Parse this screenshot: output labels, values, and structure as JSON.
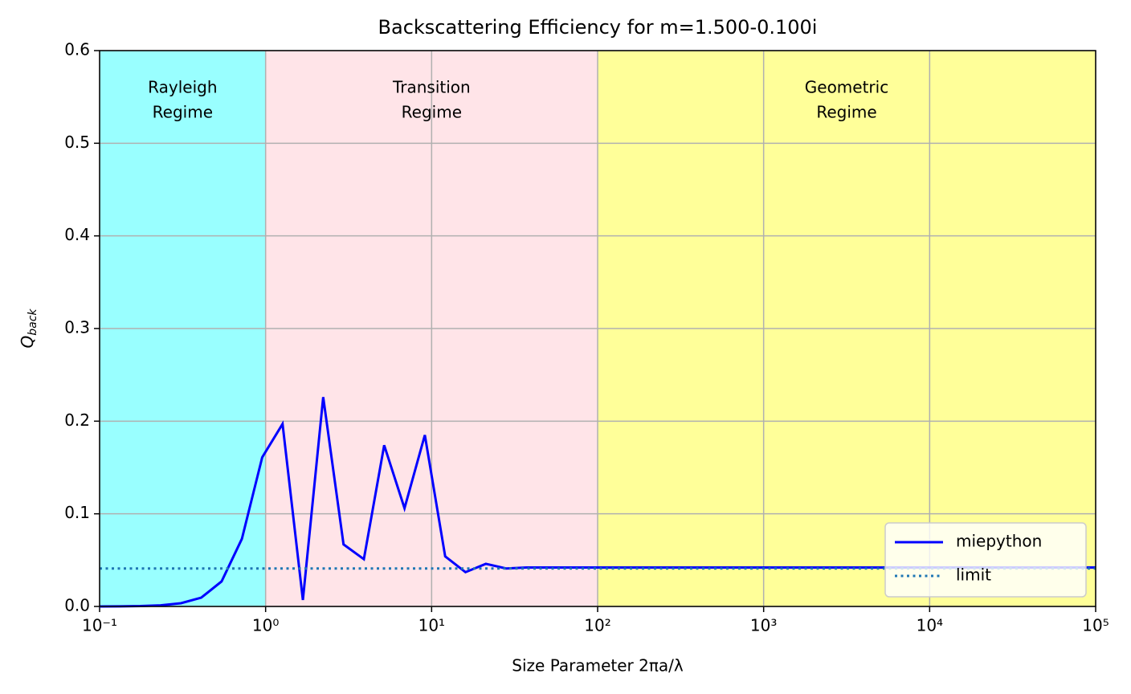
{
  "chart_data": {
    "type": "line",
    "title": "Backscattering Efficiency for m=1.500-0.100i",
    "xlabel": "Size Parameter 2πa/λ",
    "ylabel": [
      "Q",
      "back"
    ],
    "xscale": "log",
    "xlim": [
      0.1,
      100000
    ],
    "ylim": [
      0,
      0.6
    ],
    "xticks": [
      {
        "value": 0.1,
        "label": "10⁻¹"
      },
      {
        "value": 1,
        "label": "10⁰"
      },
      {
        "value": 10,
        "label": "10¹"
      },
      {
        "value": 100,
        "label": "10²"
      },
      {
        "value": 1000,
        "label": "10³"
      },
      {
        "value": 10000,
        "label": "10⁴"
      },
      {
        "value": 100000,
        "label": "10⁵"
      }
    ],
    "yticks": [
      {
        "value": 0,
        "label": "0.0"
      },
      {
        "value": 0.1,
        "label": "0.1"
      },
      {
        "value": 0.2,
        "label": "0.2"
      },
      {
        "value": 0.3,
        "label": "0.3"
      },
      {
        "value": 0.4,
        "label": "0.4"
      },
      {
        "value": 0.5,
        "label": "0.5"
      },
      {
        "value": 0.6,
        "label": "0.6"
      }
    ],
    "grid": true,
    "legend": "lower right",
    "regions": [
      {
        "label": [
          "Rayleigh",
          "Regime"
        ],
        "xlim": [
          0.1,
          1
        ],
        "color": "#99ffff"
      },
      {
        "label": [
          "Transition",
          "Regime"
        ],
        "xlim": [
          1,
          100
        ],
        "color": "#ffe4e8"
      },
      {
        "label": [
          "Geometric",
          "Regime"
        ],
        "xlim": [
          100,
          100000
        ],
        "color": "#ffff99"
      }
    ],
    "series": [
      {
        "name": "miepython",
        "color": "#0000ff",
        "style": "solid",
        "x": [
          0.1,
          0.1326,
          0.1758,
          0.233,
          0.3089,
          0.4095,
          0.5429,
          0.7197,
          0.9541,
          1.265,
          1.677,
          2.223,
          2.947,
          3.907,
          5.179,
          6.866,
          9.103,
          12.07,
          15.99,
          21.21,
          28.12,
          37.28,
          49.42,
          65.51,
          86.85,
          115.1,
          152.6,
          202.4,
          268.3,
          355.6,
          471.4,
          625.1,
          828.6,
          1099,
          1456,
          1931,
          2560,
          3393,
          4498,
          5964,
          7906,
          10480,
          13900,
          18420,
          24420,
          32370,
          42920,
          56900,
          75430,
          100000
        ],
        "values": [
          0.0,
          0.0001,
          0.0004,
          0.0012,
          0.0035,
          0.0095,
          0.027,
          0.073,
          0.161,
          0.197,
          0.007,
          0.226,
          0.067,
          0.051,
          0.174,
          0.106,
          0.185,
          0.054,
          0.037,
          0.046,
          0.041,
          0.042,
          0.042,
          0.042,
          0.042,
          0.042,
          0.042,
          0.042,
          0.042,
          0.042,
          0.042,
          0.042,
          0.042,
          0.042,
          0.042,
          0.042,
          0.042,
          0.042,
          0.042,
          0.042,
          0.042,
          0.042,
          0.042,
          0.042,
          0.042,
          0.042,
          0.042,
          0.042,
          0.042,
          0.042
        ]
      },
      {
        "name": "limit",
        "color": "#1f77b4",
        "style": "dotted",
        "x": [
          0.1,
          100000
        ],
        "values": [
          0.041,
          0.041
        ]
      }
    ]
  }
}
